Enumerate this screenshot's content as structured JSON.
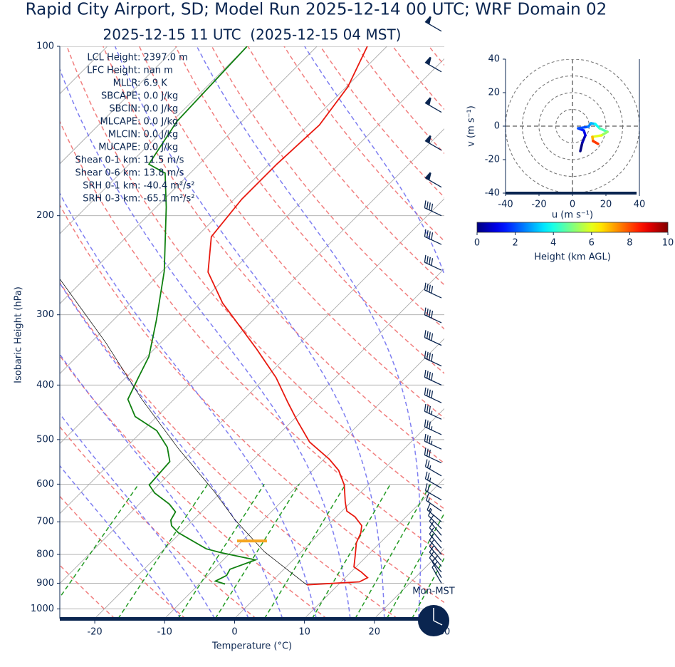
{
  "chart_data": [
    {
      "type": "skewt",
      "title": "Rapid City Airport, SD; Model Run 2025-12-14 00 UTC; WRF Domain 02",
      "subtitle": "2025-12-15 11 UTC  (2025-12-15 04 MST)",
      "xlabel": "Temperature (°C)",
      "ylabel": "Isobaric Height (hPa)",
      "xlim": [
        -25,
        30
      ],
      "ylim": [
        100,
        1040
      ],
      "xticks": [
        -20,
        -10,
        0,
        10,
        20,
        30
      ],
      "yticks": [
        100,
        200,
        300,
        400,
        500,
        600,
        700,
        800,
        900,
        1000
      ],
      "grid": true,
      "annotations": [
        "LCL Height: 2397.0 m",
        "LFC Height: nan m",
        "MLLR: 6.9 K",
        "SBCAPE: 0.0 J/kg",
        "SBCIN: 0.0 J/kg",
        "MLCAPE: 0.0 J/kg",
        "MLCIN: 0.0 J/kg",
        "MUCAPE: 0.0 J/kg",
        "Shear 0-1 km: 11.5 m/s",
        "Shear 0-6 km: 13.8 m/s",
        "SRH 0-1 km: -40.4 m²/s²",
        "SRH 0-3 km: -65.1 m²/s²"
      ],
      "clock_label": "Mon-MST",
      "isotherms": [
        -100,
        -90,
        -80,
        -70,
        -60,
        -50,
        -40,
        -30,
        -20,
        -10,
        0,
        10,
        20,
        30,
        40
      ],
      "dry_adiabats": [
        -30,
        -20,
        -10,
        0,
        10,
        20,
        30,
        40,
        50,
        60,
        70,
        80,
        90,
        100,
        110,
        120,
        130,
        140,
        150
      ],
      "moist_adiabats": [
        -10,
        -5,
        0,
        5,
        10,
        15,
        20,
        25,
        30,
        35
      ],
      "mixing_lines": [
        0.4,
        1,
        2,
        3,
        5,
        8,
        12,
        16,
        20
      ],
      "series": [
        {
          "color": "#e8190f",
          "pressure": [
            906,
            895,
            880,
            860,
            842,
            805,
            763,
            732,
            711,
            686,
            670,
            646,
            602,
            567,
            542,
            505,
            463,
            430,
            388,
            345,
            286,
            252,
            218,
            187,
            162,
            138,
            118,
            100
          ],
          "values": [
            5.5,
            12.6,
            13.2,
            11.5,
            9.7,
            8.3,
            6.6,
            5.8,
            4.9,
            2.7,
            0.7,
            -0.8,
            -3.4,
            -6.3,
            -9.2,
            -14.5,
            -19.3,
            -23.2,
            -28.5,
            -35.4,
            -46.8,
            -53.3,
            -57.9,
            -58.9,
            -58.9,
            -58.4,
            -59.8,
            -62.8
          ]
        },
        {
          "color": "#108010",
          "pressure": [
            903,
            892,
            872,
            850,
            818,
            794,
            782,
            732,
            711,
            695,
            672,
            651,
            622,
            602,
            547,
            516,
            482,
            455,
            424,
            388,
            356,
            307,
            251,
            193,
            168,
            162,
            136,
            100
          ],
          "values": [
            -6.3,
            -8.1,
            -7.3,
            -7.7,
            -5.4,
            -11.4,
            -14.0,
            -20.3,
            -22.3,
            -23.2,
            -23.7,
            -25.7,
            -29.4,
            -31.3,
            -31.7,
            -34.1,
            -38.0,
            -43.1,
            -46.6,
            -48.2,
            -49.7,
            -53.8,
            -59.7,
            -68.6,
            -73.6,
            -77.2,
            -79.3,
            -80.0
          ]
        },
        {
          "color": "#000000",
          "pressure": [
            906,
            791,
            695,
            618,
            519,
            424,
            336,
            258
          ],
          "values": [
            5.5,
            -5.3,
            -14.0,
            -21.1,
            -32.3,
            -44.6,
            -57.9,
            -73.8
          ]
        }
      ],
      "lcl_marker": {
        "pressure": 757,
        "temperature": -8.6,
        "color": "#f5a623"
      },
      "wind_barbs": {
        "pressure": [
          94,
          111,
          131,
          153,
          178,
          200,
          225,
          250,
          280,
          310,
          340,
          370,
          400,
          430,
          460,
          490,
          520,
          550,
          580,
          610,
          640,
          670,
          700,
          720,
          740,
          760,
          780,
          800,
          820,
          840,
          860,
          880,
          900
        ],
        "speed": [
          60,
          60,
          60,
          60,
          60,
          40,
          40,
          40,
          40,
          40,
          40,
          40,
          40,
          40,
          35,
          35,
          35,
          30,
          25,
          25,
          20,
          15,
          15,
          10,
          10,
          10,
          10,
          10,
          10,
          10,
          10,
          10,
          10
        ],
        "direction": [
          300,
          300,
          300,
          300,
          300,
          295,
          295,
          295,
          295,
          295,
          295,
          295,
          295,
          295,
          295,
          295,
          295,
          295,
          300,
          300,
          300,
          305,
          310,
          315,
          320,
          320,
          320,
          320,
          320,
          320,
          320,
          330,
          330
        ],
        "color": "#0a2550"
      }
    },
    {
      "type": "hodograph",
      "xlabel": "u (m s⁻¹)",
      "ylabel": "v (m s⁻¹)",
      "xlim": [
        -40,
        40
      ],
      "ylim": [
        -40,
        40
      ],
      "xticks": [
        -40,
        -20,
        0,
        20,
        40
      ],
      "yticks": [
        -40,
        -20,
        0,
        20,
        40
      ],
      "rings": [
        10,
        20,
        30,
        40
      ],
      "u": [
        4.7,
        5.9,
        7.7,
        6.8,
        3.4,
        9.4,
        11.1,
        13.6,
        16.2,
        20.9,
        17.4,
        11.9,
        12.3,
        15.3
      ],
      "v": [
        -14.9,
        -9.8,
        -5.5,
        -2.6,
        -1.3,
        -0.4,
        1.7,
        1.3,
        -1.3,
        -3.4,
        -5.5,
        -6.4,
        -8.9,
        -10.6
      ],
      "heights": [
        0,
        0.5,
        1,
        1.5,
        2,
        2.5,
        3,
        3.8,
        4.5,
        5.2,
        6,
        7,
        8.2,
        9.5
      ],
      "colorbar": {
        "label": "Height (km AGL)",
        "lim": [
          0,
          10
        ],
        "ticks": [
          0,
          2,
          4,
          6,
          8,
          10
        ]
      }
    }
  ]
}
